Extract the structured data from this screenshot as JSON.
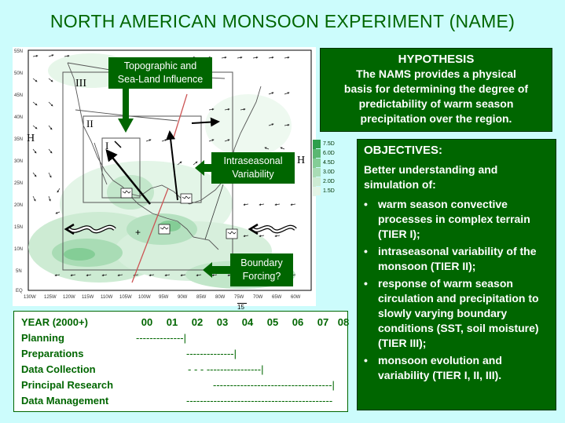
{
  "title": "NORTH AMERICAN MONSOON EXPERIMENT (NAME)",
  "hypothesis": {
    "heading": "HYPOTHESIS",
    "lines": [
      "The NAMS provides a physical",
      "basis for determining the degree of",
      "predictability of warm season",
      "precipitation over the region."
    ]
  },
  "objectives": {
    "heading": "OBJECTIVES:",
    "intro": "Better understanding and simulation of:",
    "items": [
      "warm season convective processes in complex terrain (TIER I);",
      "intraseasonal variability of the monsoon (TIER II);",
      "response of warm season circulation and precipitation to slowly varying boundary conditions (SST, soil moisture) (TIER III);",
      "monsoon evolution and variability (TIER I, II, III)."
    ]
  },
  "map": {
    "callouts": {
      "topographic": [
        "Topographic and",
        "Sea-Land Influence"
      ],
      "intraseasonal": [
        "Intraseasonal",
        "Variability"
      ],
      "boundary": [
        "Boundary",
        "Forcing?"
      ]
    },
    "tier_labels": [
      "III",
      "II",
      "I"
    ],
    "h_labels": [
      "H",
      "H"
    ],
    "legend": [
      "7.5D",
      "6.0D",
      "4.5D",
      "3.0D",
      "2.0D",
      "1.5D"
    ],
    "lat_labels": [
      "55N",
      "50N",
      "45N",
      "40N",
      "35N",
      "30N",
      "25N",
      "20N",
      "15N",
      "10N",
      "5N",
      "EQ"
    ],
    "lon_labels": [
      "130W",
      "125W",
      "120W",
      "115W",
      "110W",
      "105W",
      "100W",
      "95W",
      "90W",
      "85W",
      "80W",
      "75W",
      "70W",
      "65W",
      "60W"
    ],
    "scale_vector": "15"
  },
  "schedule": {
    "year_label": "YEAR (2000+)",
    "years": [
      "00",
      "01",
      "02",
      "03",
      "04",
      "05",
      "06",
      "07",
      "08"
    ],
    "rows": [
      {
        "label": "Planning",
        "bar": "--------------|"
      },
      {
        "label": "Preparations",
        "bar": "--------------|"
      },
      {
        "label": "Data Collection",
        "bar": "- - - ----------------|"
      },
      {
        "label": "Principal Research",
        "bar": "-----------------------------------|"
      },
      {
        "label": "Data Management",
        "bar": "-------------------------------------------"
      }
    ]
  }
}
